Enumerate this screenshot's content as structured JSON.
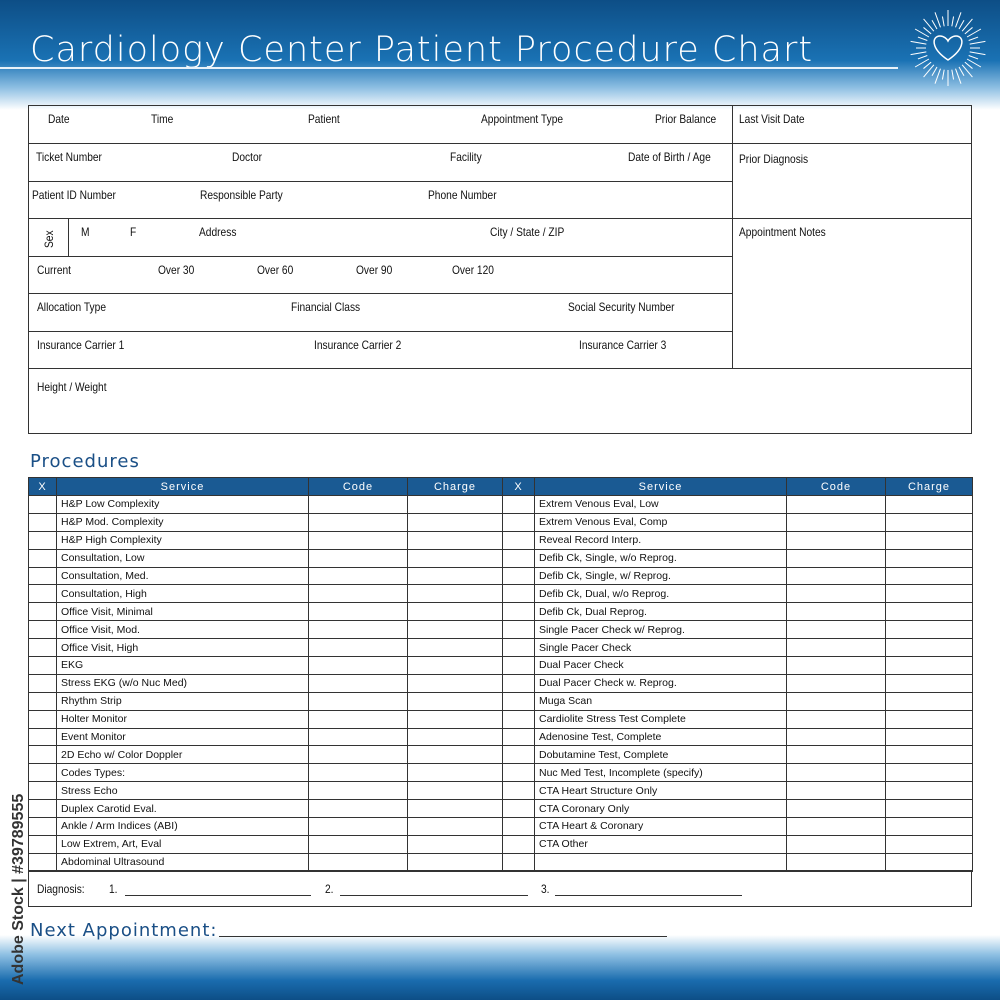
{
  "header": {
    "title": "Cardiology Center Patient Procedure Chart",
    "logo": "heart-icon"
  },
  "watermark": "Adobe Stock | #39789555",
  "form": {
    "date": "Date",
    "time": "Time",
    "patient": "Patient",
    "appointment_type": "Appointment Type",
    "prior_balance": "Prior Balance",
    "last_visit_date": "Last Visit Date",
    "ticket_number": "Ticket Number",
    "doctor": "Doctor",
    "facility": "Facility",
    "dob_age": "Date of Birth / Age",
    "prior_diagnosis": "Prior Diagnosis",
    "patient_id": "Patient ID Number",
    "responsible_party": "Responsible Party",
    "phone_number": "Phone Number",
    "sex": "Sex",
    "m": "M",
    "f": "F",
    "address": "Address",
    "city_state_zip": "City / State / ZIP",
    "appointment_notes": "Appointment Notes",
    "current": "Current",
    "over30": "Over 30",
    "over60": "Over 60",
    "over90": "Over 90",
    "over120": "Over 120",
    "allocation_type": "Allocation Type",
    "financial_class": "Financial Class",
    "ssn": "Social Security Number",
    "ins1": "Insurance Carrier 1",
    "ins2": "Insurance Carrier 2",
    "ins3": "Insurance Carrier 3",
    "height_weight": "Height / Weight"
  },
  "procedures": {
    "title": "Procedures",
    "columns": [
      "X",
      "Service",
      "Code",
      "Charge",
      "X",
      "Service",
      "Code",
      "Charge"
    ],
    "left": [
      "H&P Low Complexity",
      "H&P Mod. Complexity",
      "H&P High Complexity",
      "Consultation, Low",
      "Consultation, Med.",
      "Consultation, High",
      "Office Visit, Minimal",
      "Office Visit, Mod.",
      "Office Visit, High",
      "EKG",
      "Stress EKG (w/o Nuc Med)",
      "Rhythm Strip",
      "Holter Monitor",
      "Event Monitor",
      "2D Echo w/ Color Doppler",
      "Codes Types:",
      "Stress Echo",
      "Duplex Carotid Eval.",
      "Ankle / Arm Indices (ABI)",
      "Low Extrem, Art, Eval",
      "Abdominal Ultrasound"
    ],
    "right": [
      "Extrem Venous Eval, Low",
      "Extrem Venous Eval, Comp",
      "Reveal Record Interp.",
      "Defib Ck, Single, w/o Reprog.",
      "Defib Ck, Single, w/ Reprog.",
      "Defib Ck, Dual, w/o Reprog.",
      "Defib Ck, Dual Reprog.",
      "Single Pacer Check w/ Reprog.",
      "Single Pacer Check",
      "Dual Pacer Check",
      "Dual Pacer Check w. Reprog.",
      "Muga Scan",
      "Cardiolite Stress Test Complete",
      "Adenosine Test, Complete",
      "Dobutamine Test, Complete",
      "Nuc Med Test, Incomplete (specify)",
      "CTA Heart Structure Only",
      "CTA Coronary Only",
      "CTA Heart & Coronary",
      "CTA Other",
      ""
    ]
  },
  "diagnosis": {
    "label": "Diagnosis:",
    "n1": "1.",
    "n2": "2.",
    "n3": "3."
  },
  "next_appointment": "Next Appointment:"
}
